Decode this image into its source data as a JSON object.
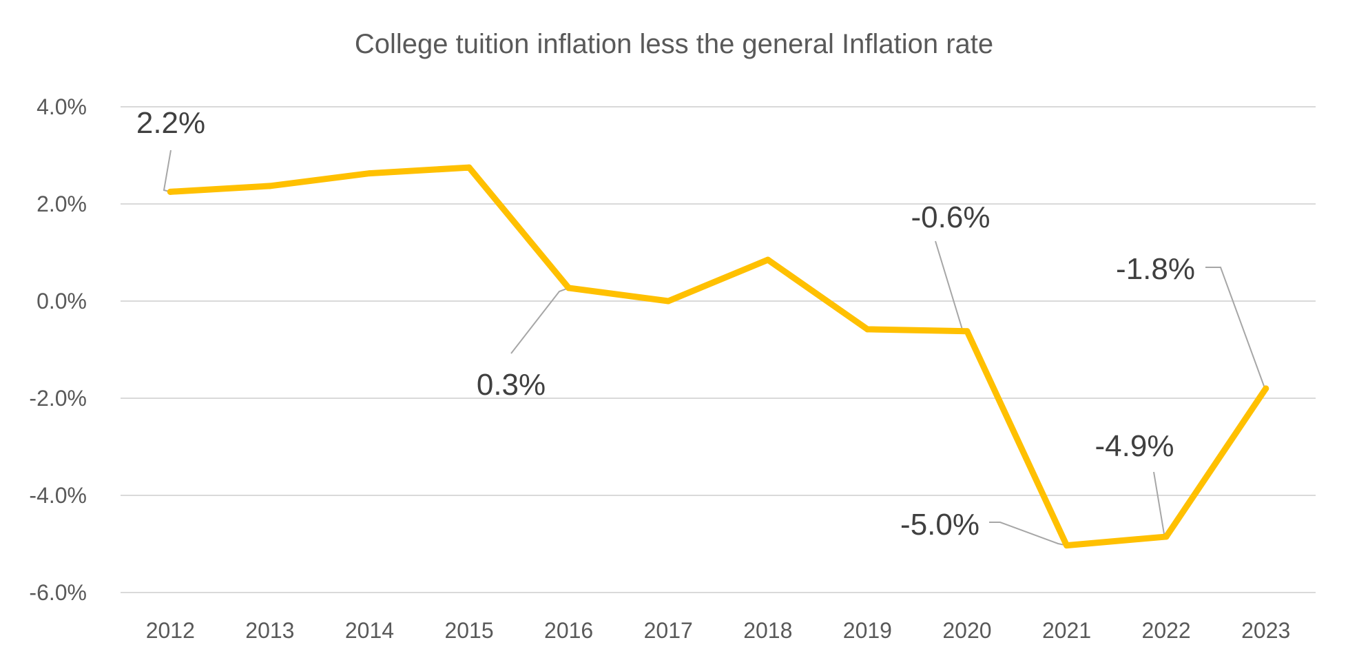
{
  "chart_data": {
    "type": "line",
    "title": "College tuition inflation less the general Inflation rate",
    "xlabel": "",
    "ylabel": "",
    "categories": [
      "2012",
      "2013",
      "2014",
      "2015",
      "2016",
      "2017",
      "2018",
      "2019",
      "2020",
      "2021",
      "2022",
      "2023"
    ],
    "series": [
      {
        "values": [
          2.25,
          2.37,
          2.63,
          2.75,
          0.27,
          0.0,
          0.85,
          -0.58,
          -0.62,
          -5.03,
          -4.85,
          -1.8
        ],
        "color": "#ffc000"
      }
    ],
    "ylim": [
      -6,
      4
    ],
    "yticks": [
      4,
      2,
      0,
      -2,
      -4,
      -6
    ],
    "ytick_labels": [
      "4.0%",
      "2.0%",
      "0.0%",
      "-2.0%",
      "-4.0%",
      "-6.0%"
    ],
    "grid": true,
    "legend": "none",
    "data_labels": [
      {
        "category": "2012",
        "text": "2.2%"
      },
      {
        "category": "2016",
        "text": "0.3%"
      },
      {
        "category": "2020",
        "text": "-0.6%"
      },
      {
        "category": "2021",
        "text": "-5.0%"
      },
      {
        "category": "2022",
        "text": "-4.9%"
      },
      {
        "category": "2023",
        "text": "-1.8%"
      }
    ]
  }
}
